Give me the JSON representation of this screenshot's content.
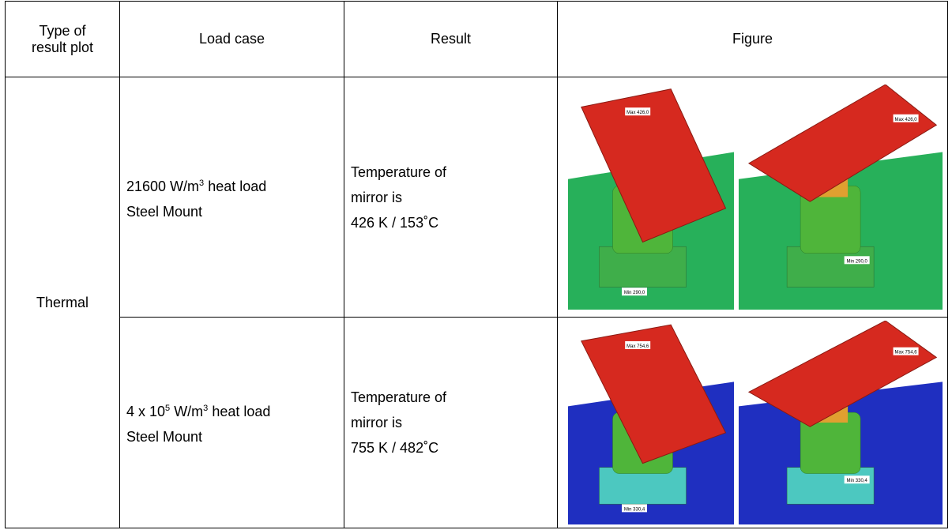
{
  "table": {
    "header": [
      [
        "Type of",
        "result plot"
      ],
      "Load case",
      "Result",
      "Figure"
    ],
    "rows": [
      {
        "type": "Thermal",
        "load_case": {
          "base": "21600 W/m",
          "sup": "3",
          "rest": "heat load",
          "line2": "Steel Mount"
        },
        "result": [
          "Temperature of",
          "mirror is",
          "426 K / 153˚C"
        ],
        "figures": [
          {
            "max": "Max 426,0",
            "min": "Min 290,0"
          },
          {
            "max": "Max 426,0",
            "min": "Min 290,0"
          }
        ]
      },
      {
        "load_case": {
          "base": "4 x 10",
          "sup": "5",
          "rest": "W/m",
          "sup2": "3",
          "rest2": "heat load",
          "line2": "Steel Mount"
        },
        "result": [
          "Temperature of",
          "mirror is",
          "755 K / 482˚C"
        ],
        "figures": [
          {
            "max": "Max 754,6",
            "min": "Min 330,4"
          },
          {
            "max": "Max 754,6",
            "min": "Min 330,4"
          }
        ]
      }
    ]
  }
}
